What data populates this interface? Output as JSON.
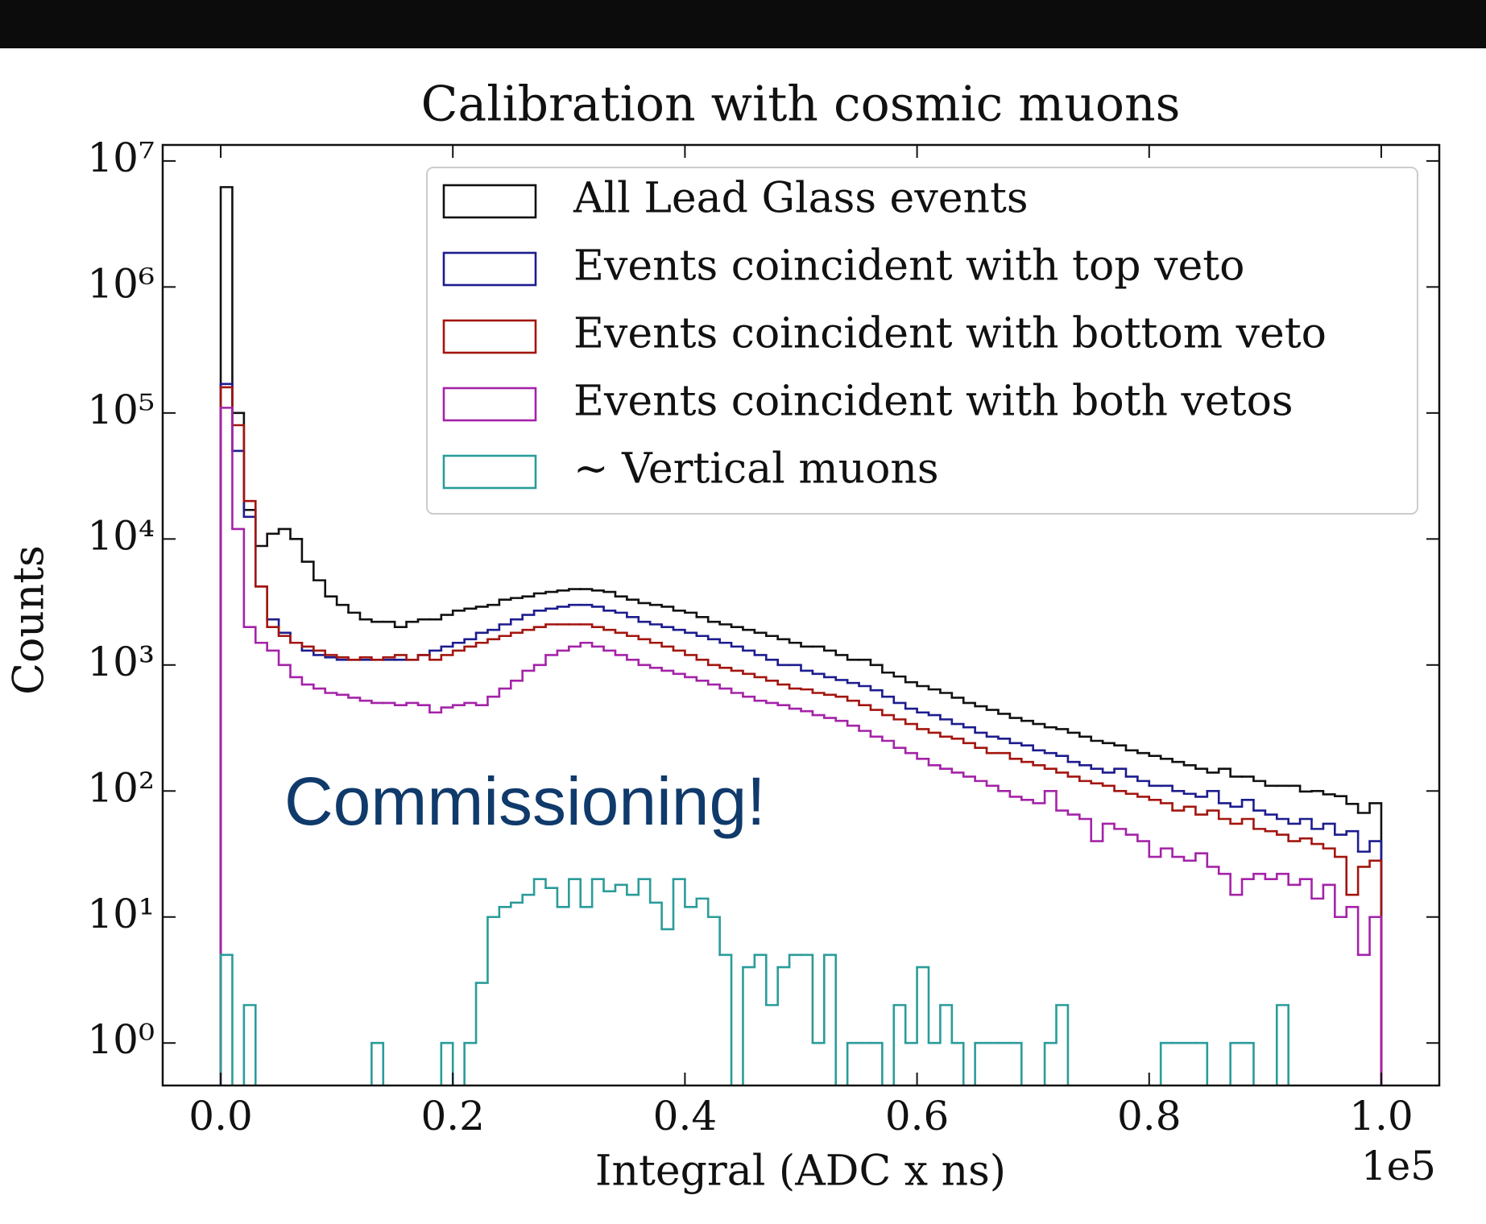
{
  "chart_data": {
    "type": "histogram",
    "title": "Calibration with cosmic muons",
    "xlabel": "Integral (ADC x ns)",
    "x_offset_label": "1e5",
    "ylabel": "Counts",
    "annotation": "Commissioning!",
    "yscale": "log",
    "legend": "upper right",
    "xlim": [
      -0.05,
      1.05
    ],
    "xticks": [
      {
        "value": 0,
        "label": "0.0"
      },
      0.2,
      0.4,
      0.6,
      0.8,
      {
        "value": 1,
        "label": "1.0"
      }
    ],
    "ylim": [
      0.46,
      13400000
    ],
    "yticks": [
      {
        "value": 1,
        "label": "10⁰"
      },
      {
        "value": 10,
        "label": "10¹"
      },
      {
        "value": 100,
        "label": "10²"
      },
      {
        "value": 1000,
        "label": "10³"
      },
      {
        "value": 10000,
        "label": "10⁴"
      },
      {
        "value": 100000,
        "label": "10⁵"
      },
      {
        "value": 1000000,
        "label": "10⁶"
      },
      {
        "value": 10000000,
        "label": "10⁷"
      }
    ],
    "bins": [
      0,
      0.01,
      0.02,
      0.03,
      0.04,
      0.05,
      0.06,
      0.07,
      0.08,
      0.09,
      0.1,
      0.11,
      0.12,
      0.13,
      0.14,
      0.15,
      0.16,
      0.17,
      0.18,
      0.19,
      0.2,
      0.21,
      0.22,
      0.23,
      0.24,
      0.25,
      0.26,
      0.27,
      0.28,
      0.29,
      0.3,
      0.31,
      0.32,
      0.33,
      0.34,
      0.35,
      0.36,
      0.37,
      0.38,
      0.39,
      0.4,
      0.41,
      0.42,
      0.43,
      0.44,
      0.45,
      0.46,
      0.47,
      0.48,
      0.49,
      0.5,
      0.51,
      0.52,
      0.53,
      0.54,
      0.55,
      0.56,
      0.57,
      0.58,
      0.59,
      0.6,
      0.61,
      0.62,
      0.63,
      0.64,
      0.65,
      0.66,
      0.67,
      0.68,
      0.69,
      0.7,
      0.71,
      0.72,
      0.73,
      0.74,
      0.75,
      0.76,
      0.77,
      0.78,
      0.79,
      0.8,
      0.81,
      0.82,
      0.83,
      0.84,
      0.85,
      0.86,
      0.87,
      0.88,
      0.89,
      0.9,
      0.91,
      0.92,
      0.93,
      0.94,
      0.95,
      0.96,
      0.97,
      0.98,
      0.99,
      1
    ],
    "series": [
      {
        "name": "All Lead Glass events",
        "color": "#111111",
        "values": [
          6200000,
          100000,
          17000,
          8800,
          11000,
          12000,
          10000,
          6600,
          4700,
          3500,
          3000,
          2600,
          2300,
          2200,
          2200,
          2000,
          2200,
          2300,
          2300,
          2500,
          2700,
          2800,
          2900,
          3000,
          3300,
          3400,
          3500,
          3700,
          3800,
          3900,
          4000,
          4000,
          3900,
          3800,
          3500,
          3300,
          3100,
          3000,
          2900,
          2700,
          2600,
          2400,
          2200,
          2100,
          2000,
          1900,
          1800,
          1700,
          1600,
          1500,
          1400,
          1400,
          1300,
          1200,
          1100,
          1100,
          1000,
          870,
          810,
          730,
          680,
          640,
          600,
          550,
          500,
          470,
          440,
          410,
          380,
          360,
          340,
          320,
          310,
          290,
          270,
          250,
          240,
          230,
          210,
          200,
          190,
          180,
          170,
          160,
          150,
          140,
          150,
          130,
          130,
          120,
          110,
          110,
          110,
          99,
          100,
          94,
          91,
          79,
          67,
          80
        ]
      },
      {
        "name": "Events coincident with top veto",
        "color": "#1c1c8f",
        "values": [
          170000,
          50000,
          15000,
          4200,
          2300,
          1800,
          1500,
          1300,
          1200,
          1150,
          1100,
          1100,
          1100,
          1100,
          1100,
          1100,
          1100,
          1200,
          1300,
          1400,
          1500,
          1600,
          1800,
          1900,
          2100,
          2300,
          2500,
          2700,
          2800,
          2900,
          3000,
          3000,
          2900,
          2700,
          2600,
          2400,
          2200,
          2100,
          2000,
          1900,
          1800,
          1700,
          1600,
          1500,
          1400,
          1300,
          1200,
          1100,
          1000,
          1000,
          900,
          850,
          800,
          760,
          720,
          680,
          630,
          560,
          500,
          450,
          420,
          400,
          370,
          340,
          320,
          290,
          270,
          260,
          240,
          230,
          210,
          200,
          190,
          170,
          160,
          150,
          140,
          150,
          130,
          120,
          110,
          110,
          100,
          95,
          90,
          100,
          80,
          75,
          85,
          70,
          65,
          60,
          55,
          60,
          50,
          55,
          45,
          48,
          33,
          40
        ]
      },
      {
        "name": "Events coincident with bottom veto",
        "color": "#a3150f",
        "values": [
          160000,
          80000,
          20000,
          4200,
          2000,
          1700,
          1500,
          1400,
          1300,
          1200,
          1150,
          1100,
          1150,
          1100,
          1150,
          1200,
          1100,
          1200,
          1100,
          1200,
          1300,
          1400,
          1500,
          1600,
          1700,
          1800,
          1900,
          2000,
          2100,
          2100,
          2100,
          2100,
          2000,
          1900,
          1800,
          1700,
          1600,
          1500,
          1400,
          1300,
          1200,
          1100,
          1000,
          950,
          900,
          850,
          800,
          750,
          700,
          650,
          640,
          600,
          580,
          560,
          520,
          480,
          440,
          400,
          370,
          340,
          310,
          290,
          270,
          260,
          240,
          220,
          200,
          200,
          180,
          170,
          160,
          150,
          140,
          130,
          120,
          115,
          110,
          100,
          95,
          90,
          85,
          80,
          70,
          75,
          65,
          70,
          60,
          55,
          60,
          50,
          48,
          45,
          40,
          42,
          38,
          35,
          30,
          15,
          25,
          28
        ]
      },
      {
        "name": "Events coincident with both vetos",
        "color": "#a423a8",
        "values": [
          110000,
          12000,
          2000,
          1500,
          1300,
          1000,
          800,
          700,
          650,
          600,
          580,
          550,
          520,
          500,
          500,
          480,
          500,
          480,
          420,
          460,
          480,
          500,
          480,
          560,
          650,
          750,
          900,
          1000,
          1200,
          1300,
          1400,
          1500,
          1400,
          1300,
          1200,
          1100,
          1000,
          950,
          900,
          850,
          800,
          750,
          700,
          650,
          600,
          560,
          520,
          500,
          480,
          450,
          430,
          400,
          380,
          360,
          330,
          300,
          270,
          250,
          220,
          200,
          180,
          160,
          150,
          140,
          130,
          120,
          110,
          100,
          90,
          85,
          80,
          100,
          70,
          65,
          60,
          40,
          55,
          50,
          45,
          40,
          30,
          35,
          30,
          28,
          32,
          25,
          22,
          15,
          20,
          22,
          20,
          22,
          18,
          20,
          14,
          18,
          10,
          12,
          5,
          10
        ]
      },
      {
        "name": "~ Vertical muons",
        "color": "#2a9c9a",
        "values": [
          5,
          0,
          2,
          0,
          0,
          0,
          0,
          0,
          0,
          0,
          0,
          0,
          0,
          1,
          0,
          0,
          0,
          0,
          0,
          1,
          0,
          1,
          3,
          10,
          12,
          13,
          15,
          20,
          17,
          12,
          20,
          12,
          20,
          16,
          18,
          15,
          20,
          13,
          8,
          20,
          12,
          14,
          10,
          5,
          0,
          4,
          5,
          2,
          4,
          5,
          5,
          1,
          5,
          0,
          1,
          1,
          1,
          0,
          2,
          1,
          4,
          1,
          2,
          1,
          0,
          1,
          1,
          1,
          1,
          0,
          0,
          1,
          2,
          0,
          0,
          0,
          0,
          0,
          0,
          0,
          0,
          1,
          1,
          1,
          1,
          0,
          0,
          1,
          1,
          0,
          0,
          2,
          0,
          0,
          0,
          0,
          0,
          0,
          0,
          0
        ]
      }
    ]
  }
}
